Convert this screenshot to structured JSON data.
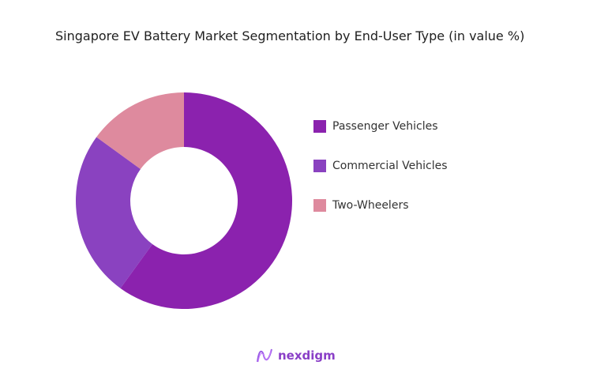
{
  "chart_data": {
    "type": "pie",
    "title": "Singapore EV Battery Market Segmentation by End-User Type (in value %)",
    "donut": true,
    "categories": [
      "Passenger Vehicles",
      "Commercial Vehicles",
      "Two-Wheelers"
    ],
    "values": [
      60,
      25,
      15
    ],
    "colors": [
      "#8b22ae",
      "#8a42c0",
      "#de8a9e"
    ],
    "legend_position": "right"
  },
  "brand": {
    "logo_text": "nexdigm"
  }
}
